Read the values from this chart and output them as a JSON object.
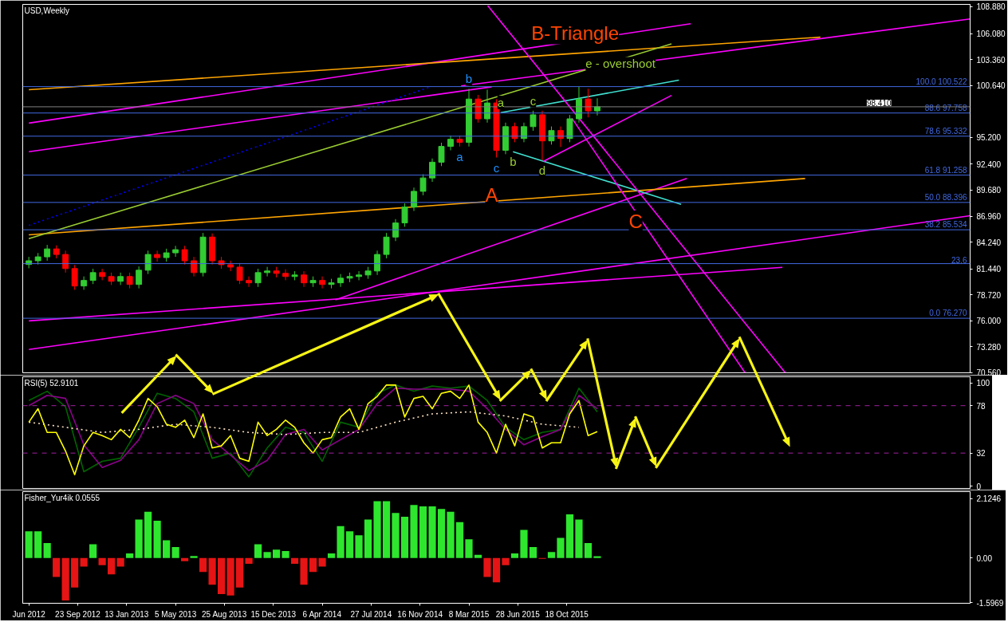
{
  "chart_data": [
    {
      "type": "candlestick",
      "title": "USD,Weekly",
      "tick_labels": "y",
      "x": [
        "2012-06-03",
        "2012-06-24",
        "2012-07-15",
        "2012-08-05",
        "2012-08-26",
        "2012-09-16",
        "2012-10-07",
        "2012-10-28",
        "2012-11-18",
        "2012-12-09",
        "2012-12-30",
        "2013-01-20",
        "2013-02-10",
        "2013-03-03",
        "2013-03-24",
        "2013-04-14",
        "2013-05-05",
        "2013-05-26",
        "2013-06-16",
        "2013-07-07",
        "2013-07-28",
        "2013-08-18",
        "2013-09-08",
        "2013-09-29",
        "2013-10-20",
        "2013-11-10",
        "2013-12-01",
        "2013-12-22",
        "2014-01-12",
        "2014-02-02",
        "2014-02-23",
        "2014-03-16",
        "2014-04-06",
        "2014-04-27",
        "2014-05-18",
        "2014-06-08",
        "2014-06-29",
        "2014-07-20",
        "2014-08-10",
        "2014-08-31",
        "2014-09-21",
        "2014-10-12",
        "2014-11-02",
        "2014-11-23",
        "2014-12-14",
        "2015-01-04",
        "2015-01-25",
        "2015-02-15",
        "2015-03-08",
        "2015-03-29",
        "2015-04-19",
        "2015-05-10",
        "2015-05-31",
        "2015-06-21",
        "2015-07-12",
        "2015-08-02",
        "2015-08-23",
        "2015-09-13",
        "2015-10-04",
        "2015-10-25",
        "2015-11-15",
        "2015-12-06",
        "2015-12-27"
      ],
      "ohlc": [
        [
          81.9,
          82.7,
          81.5,
          82.29
        ],
        [
          82.29,
          83.1,
          81.9,
          82.7
        ],
        [
          82.7,
          83.95,
          82.3,
          83.53
        ],
        [
          83.53,
          83.9,
          82.55,
          82.95
        ],
        [
          82.95,
          83.35,
          81.05,
          81.47
        ],
        [
          81.47,
          81.85,
          79.25,
          79.65
        ],
        [
          79.65,
          80.65,
          79.25,
          80.23
        ],
        [
          80.23,
          81.45,
          79.85,
          81.05
        ],
        [
          81.05,
          81.45,
          80.25,
          80.64
        ],
        [
          80.64,
          81.05,
          79.75,
          80.14
        ],
        [
          80.14,
          81.05,
          79.75,
          80.64
        ],
        [
          80.64,
          81.05,
          79.4,
          79.81
        ],
        [
          79.81,
          81.7,
          79.4,
          81.3
        ],
        [
          81.3,
          83.35,
          80.9,
          82.95
        ],
        [
          82.95,
          83.35,
          82.2,
          82.62
        ],
        [
          82.62,
          83.55,
          82.2,
          83.12
        ],
        [
          83.12,
          83.85,
          82.7,
          83.45
        ],
        [
          83.45,
          83.85,
          81.9,
          82.29
        ],
        [
          82.29,
          82.7,
          80.65,
          81.05
        ],
        [
          81.05,
          85.2,
          80.65,
          84.77
        ],
        [
          84.77,
          85.15,
          81.9,
          82.29
        ],
        [
          82.29,
          82.7,
          81.45,
          81.88
        ],
        [
          81.88,
          82.3,
          81.2,
          81.63
        ],
        [
          81.63,
          82.05,
          79.85,
          80.23
        ],
        [
          80.23,
          80.65,
          79.55,
          79.98
        ],
        [
          79.98,
          81.45,
          79.55,
          81.05
        ],
        [
          81.05,
          81.65,
          80.65,
          81.22
        ],
        [
          81.22,
          81.65,
          80.55,
          80.97
        ],
        [
          80.97,
          81.4,
          80.25,
          80.64
        ],
        [
          80.64,
          81.2,
          80.25,
          80.8
        ],
        [
          80.8,
          81.2,
          79.55,
          79.98
        ],
        [
          79.98,
          80.65,
          79.55,
          80.23
        ],
        [
          80.23,
          80.65,
          79.4,
          79.81
        ],
        [
          79.81,
          80.4,
          79.4,
          79.98
        ],
        [
          79.98,
          80.9,
          79.55,
          80.47
        ],
        [
          80.47,
          81.05,
          80.05,
          80.64
        ],
        [
          80.64,
          81.2,
          80.25,
          80.8
        ],
        [
          80.8,
          81.65,
          80.4,
          81.22
        ],
        [
          81.22,
          83.35,
          80.8,
          82.95
        ],
        [
          82.95,
          85.2,
          82.55,
          84.77
        ],
        [
          84.77,
          86.65,
          84.35,
          86.25
        ],
        [
          86.25,
          88.3,
          85.85,
          87.91
        ],
        [
          87.91,
          89.95,
          87.5,
          89.56
        ],
        [
          89.56,
          91.35,
          89.15,
          90.96
        ],
        [
          90.96,
          93.0,
          90.55,
          92.61
        ],
        [
          92.61,
          94.65,
          92.2,
          94.26
        ],
        [
          94.26,
          95.4,
          93.85,
          95.01
        ],
        [
          95.01,
          95.4,
          94.25,
          94.68
        ],
        [
          94.68,
          100.3,
          94.25,
          99.22
        ],
        [
          99.22,
          99.65,
          96.75,
          97.15
        ],
        [
          97.15,
          100.2,
          96.75,
          98.81
        ],
        [
          98.81,
          99.2,
          93.1,
          93.85
        ],
        [
          93.85,
          96.75,
          93.45,
          96.33
        ],
        [
          96.33,
          96.75,
          94.7,
          95.09
        ],
        [
          95.09,
          96.75,
          94.7,
          96.33
        ],
        [
          96.33,
          98.0,
          95.9,
          97.57
        ],
        [
          97.57,
          98.0,
          92.8,
          94.84
        ],
        [
          94.84,
          96.35,
          94.45,
          95.92
        ],
        [
          95.92,
          96.35,
          94.2,
          95.09
        ],
        [
          95.09,
          97.55,
          94.7,
          97.15
        ],
        [
          97.15,
          100.5,
          96.75,
          99.22
        ],
        [
          99.22,
          100.3,
          97.3,
          97.98
        ],
        [
          97.98,
          99.3,
          97.5,
          98.41
        ]
      ],
      "colors": [
        "#32cd32",
        "#32cd32",
        "#32cd32",
        "#ff0000",
        "#ff0000",
        "#ff0000",
        "#32cd32",
        "#32cd32",
        "#ff0000",
        "#ff0000",
        "#32cd32",
        "#ff0000",
        "#32cd32",
        "#32cd32",
        "#ff0000",
        "#32cd32",
        "#32cd32",
        "#ff0000",
        "#ff0000",
        "#32cd32",
        "#ff0000",
        "#ff0000",
        "#ff0000",
        "#ff0000",
        "#ff0000",
        "#32cd32",
        "#32cd32",
        "#ff0000",
        "#ff0000",
        "#32cd32",
        "#ff0000",
        "#32cd32",
        "#ff0000",
        "#32cd32",
        "#32cd32",
        "#32cd32",
        "#32cd32",
        "#32cd32",
        "#32cd32",
        "#32cd32",
        "#32cd32",
        "#32cd32",
        "#32cd32",
        "#32cd32",
        "#32cd32",
        "#32cd32",
        "#32cd32",
        "#ff0000",
        "#32cd32",
        "#ff0000",
        "#32cd32",
        "#ff0000",
        "#32cd32",
        "#ff0000",
        "#32cd32",
        "#32cd32",
        "#ff0000",
        "#32cd32",
        "#ff0000",
        "#32cd32",
        "#32cd32",
        "#ff0000",
        "#32cd32"
      ],
      "xlim": [
        "2012-05-20",
        "2018-04-29"
      ],
      "ylim": [
        70.56,
        109.13
      ],
      "yticks": [
        {
          "value": 108.88,
          "label": "108.880"
        },
        {
          "value": 106.08,
          "label": "106.080"
        },
        {
          "value": 103.36,
          "label": "103.360"
        },
        {
          "value": 100.64,
          "label": "100.640"
        },
        {
          "value": 95.2,
          "label": "95.200"
        },
        {
          "value": 92.4,
          "label": "92.400"
        },
        {
          "value": 89.68,
          "label": "89.680"
        },
        {
          "value": 86.96,
          "label": "86.960"
        },
        {
          "value": 84.24,
          "label": "84.240"
        },
        {
          "value": 81.44,
          "label": "81.440"
        },
        {
          "value": 78.72,
          "label": "78.720"
        },
        {
          "value": 76.0,
          "label": "76.000"
        },
        {
          "value": 73.28,
          "label": "73.280"
        },
        {
          "value": 70.56,
          "label": "70.560"
        }
      ],
      "ref_lines": [
        {
          "axis": "y",
          "value": 100.522,
          "label": "100.0 100.522",
          "color": "#4169e1"
        },
        {
          "axis": "y",
          "value": 97.758,
          "label": "88.6 97.758",
          "color": "#4169e1"
        },
        {
          "axis": "y",
          "value": 95.332,
          "label": "78.6 95.332",
          "color": "#4169e1"
        },
        {
          "axis": "y",
          "value": 91.258,
          "label": "61.8 91.258",
          "color": "#4169e1"
        },
        {
          "axis": "y",
          "value": 88.396,
          "label": "50.0 88.396",
          "color": "#4169e1"
        },
        {
          "axis": "y",
          "value": 85.534,
          "label": "38.2 85.534",
          "color": "#4169e1"
        },
        {
          "axis": "y",
          "value": 81.99,
          "color": "#4169e1"
        },
        {
          "axis": "y",
          "value": 76.27,
          "label": "0.0 76.270",
          "color": "#4169e1"
        },
        {
          "axis": "y",
          "value": 98.41,
          "label": "98.410",
          "color": "#808080"
        }
      ],
      "annotations": [
        "B-Triangle",
        "e - overshoot",
        {
          "text": "b",
          "x": "2015-03-08",
          "y": 100.3
        },
        {
          "text": "a",
          "x": "2015-02-15",
          "y": 94.25
        },
        {
          "text": "c",
          "x": "2015-05-10",
          "y": 93.1
        },
        {
          "text": "a",
          "x": "2015-05-20",
          "y": 97.81
        },
        {
          "text": "b",
          "x": "2015-06-17",
          "y": 93.69
        },
        {
          "text": "c",
          "x": "2015-08-02",
          "y": 98.0
        },
        {
          "text": "d",
          "x": "2015-08-23",
          "y": 92.8
        },
        "A",
        "C",
        {
          "text": "23.6",
          "x": "2018-04-29",
          "y": 81.99
        }
      ],
      "series": [
        {
          "type": "line",
          "x": [
            "2012-06-03",
            "2017-02-23"
          ],
          "values": [
            76.0,
            81.6
          ],
          "color": "#ff00ff"
        },
        {
          "type": "line",
          "x": [
            "2012-06-03",
            "2018-04-29"
          ],
          "values": [
            73.0,
            87.0
          ],
          "color": "#ff00ff"
        },
        {
          "type": "line",
          "x": [
            "2014-05-06",
            "2016-07-19"
          ],
          "values": [
            78.2,
            90.9
          ],
          "color": "#ff00ff"
        },
        {
          "type": "line",
          "x": [
            "2012-06-03",
            "2015-04-29"
          ],
          "values": [
            93.7,
            100.5
          ],
          "color": "#ff00ff"
        },
        {
          "type": "line",
          "x": [
            "2012-06-03",
            "2016-07-28"
          ],
          "values": [
            96.7,
            107.1
          ],
          "color": "#ff00ff"
        },
        {
          "type": "line",
          "x": [
            "2015-02-18",
            "2018-04-29"
          ],
          "values": [
            100.6,
            107.6
          ],
          "color": "#ff00ff"
        },
        {
          "type": "line",
          "x": [
            "2012-06-03",
            "2017-05-21"
          ],
          "values": [
            100.2,
            105.7
          ],
          "color": "#ffa500"
        },
        {
          "type": "line",
          "x": [
            "2012-06-03",
            "2017-04-16"
          ],
          "values": [
            85.0,
            90.9
          ],
          "color": "#ffa500"
        },
        {
          "type": "line",
          "x": [
            "2012-06-03",
            "2016-06-14"
          ],
          "values": [
            84.6,
            105.0
          ],
          "color": "#9acd32"
        },
        {
          "type": "line",
          "x": [
            "2012-06-03",
            "2014-12-10"
          ],
          "values": [
            86.0,
            100.5
          ],
          "color": "#0000ff",
          "line_style": "dotted"
        },
        {
          "type": "line",
          "x": [
            "2015-05-20",
            "2016-07-01"
          ],
          "values": [
            97.8,
            101.2
          ],
          "color": "#40e0d0"
        },
        {
          "type": "line",
          "x": [
            "2015-06-17",
            "2016-07-06"
          ],
          "values": [
            93.7,
            88.2
          ],
          "color": "#40e0d0"
        },
        {
          "type": "line",
          "x": [
            "2015-04-20",
            "2017-03-01"
          ],
          "values": [
            109.0,
            70.6
          ],
          "color": "#ff00ff"
        },
        {
          "type": "line",
          "x": [
            "2015-10-30",
            "2016-11-29"
          ],
          "values": [
            97.2,
            70.6
          ],
          "color": "#ff00ff"
        },
        {
          "type": "line",
          "x": [
            "2015-08-26",
            "2016-06-14"
          ],
          "values": [
            92.7,
            99.6
          ],
          "color": "#ff00ff"
        }
      ]
    },
    {
      "type": "line",
      "title": "RSI(5) 52.9101",
      "tick_labels": "y",
      "xlim": [
        "2012-05-20",
        "2018-04-29"
      ],
      "ylim": [
        -2.3,
        106
      ],
      "yticks": [
        100,
        78,
        32,
        0
      ],
      "ref_lines": [
        {
          "axis": "y",
          "value": 78,
          "color": "#a020a0",
          "line_style": "dashed"
        },
        {
          "axis": "y",
          "value": 32,
          "color": "#a020a0",
          "line_style": "dashed"
        }
      ],
      "series": [
        {
          "color": "#006400",
          "x": [
            "2012-06-03",
            "2012-07-15",
            "2012-08-26",
            "2012-10-07",
            "2012-11-18",
            "2012-12-30",
            "2013-02-10",
            "2013-03-24",
            "2013-05-05",
            "2013-06-16",
            "2013-07-28",
            "2013-09-08",
            "2013-10-20",
            "2013-12-01",
            "2014-01-12",
            "2014-02-23",
            "2014-04-06",
            "2014-05-18",
            "2014-06-29",
            "2014-08-10",
            "2014-09-21",
            "2014-11-02",
            "2014-12-14",
            "2015-01-25",
            "2015-03-08",
            "2015-04-19",
            "2015-05-31",
            "2015-07-12",
            "2015-08-23",
            "2015-10-04",
            "2015-11-15",
            "2015-12-27"
          ],
          "values": [
            83,
            92,
            77,
            14,
            24,
            27,
            57,
            90,
            85,
            72,
            27,
            32,
            9,
            37,
            57,
            52,
            24,
            62,
            57,
            90,
            98,
            92,
            97,
            95,
            97,
            83,
            57,
            45,
            52,
            55,
            95,
            72
          ]
        },
        {
          "color": "#8b008b",
          "x": [
            "2012-06-03",
            "2012-07-15",
            "2012-08-26",
            "2012-10-07",
            "2012-11-18",
            "2012-12-30",
            "2013-02-10",
            "2013-03-24",
            "2013-05-05",
            "2013-06-16",
            "2013-07-28",
            "2013-09-08",
            "2013-10-20",
            "2013-12-01",
            "2014-01-12",
            "2014-02-23",
            "2014-04-06",
            "2014-05-18",
            "2014-06-29",
            "2014-08-10",
            "2014-09-21",
            "2014-11-02",
            "2014-12-14",
            "2015-01-25",
            "2015-03-08",
            "2015-04-19",
            "2015-05-31",
            "2015-07-12",
            "2015-08-23",
            "2015-10-04",
            "2015-11-15",
            "2015-12-27"
          ],
          "values": [
            78,
            88,
            85,
            40,
            18,
            25,
            45,
            80,
            88,
            80,
            45,
            30,
            15,
            25,
            50,
            55,
            35,
            45,
            55,
            80,
            95,
            94,
            94,
            94,
            92,
            75,
            55,
            40,
            48,
            55,
            88,
            75
          ]
        },
        {
          "color": "#ffe4c4",
          "line_style": "dotted",
          "x": [
            "2012-06-03",
            "2012-08-26",
            "2012-11-18",
            "2013-02-10",
            "2013-05-05",
            "2013-07-28",
            "2013-10-20",
            "2014-01-12",
            "2014-04-06",
            "2014-06-29",
            "2014-09-21",
            "2014-12-14",
            "2015-03-08",
            "2015-05-31",
            "2015-08-23",
            "2015-11-15"
          ],
          "values": [
            62,
            57,
            52,
            55,
            60,
            57,
            52,
            50,
            52,
            52,
            62,
            70,
            72,
            68,
            60,
            57
          ]
        },
        {
          "color": "#ffff00",
          "x": [
            "2012-06-03",
            "2012-06-24",
            "2012-07-15",
            "2012-08-05",
            "2012-08-26",
            "2012-09-16",
            "2012-10-07",
            "2012-10-28",
            "2012-11-18",
            "2012-12-09",
            "2012-12-30",
            "2013-01-20",
            "2013-02-10",
            "2013-03-03",
            "2013-03-24",
            "2013-04-14",
            "2013-05-05",
            "2013-05-26",
            "2013-06-16",
            "2013-07-07",
            "2013-07-28",
            "2013-08-18",
            "2013-09-08",
            "2013-09-29",
            "2013-10-20",
            "2013-11-10",
            "2013-12-01",
            "2013-12-22",
            "2014-01-12",
            "2014-02-02",
            "2014-02-23",
            "2014-03-16",
            "2014-04-06",
            "2014-04-27",
            "2014-05-18",
            "2014-06-08",
            "2014-06-29",
            "2014-07-20",
            "2014-08-10",
            "2014-08-31",
            "2014-09-21",
            "2014-10-12",
            "2014-11-02",
            "2014-11-23",
            "2014-12-14",
            "2015-01-04",
            "2015-01-25",
            "2015-02-15",
            "2015-03-08",
            "2015-03-29",
            "2015-04-19",
            "2015-05-10",
            "2015-05-31",
            "2015-06-21",
            "2015-07-12",
            "2015-08-02",
            "2015-08-23",
            "2015-09-13",
            "2015-10-04",
            "2015-10-25",
            "2015-11-15",
            "2015-12-06",
            "2015-12-27"
          ],
          "values": [
            62,
            75,
            52,
            52,
            34,
            11,
            39,
            52,
            49,
            45,
            55,
            47,
            64,
            85,
            77,
            60,
            57,
            64,
            47,
            70,
            37,
            39,
            49,
            27,
            24,
            62,
            49,
            55,
            64,
            57,
            42,
            32,
            45,
            47,
            67,
            75,
            55,
            80,
            87,
            98,
            98,
            67,
            85,
            87,
            75,
            90,
            92,
            85,
            98,
            62,
            52,
            32,
            60,
            39,
            70,
            67,
            37,
            42,
            42,
            70,
            83,
            49,
            52.9
          ]
        }
      ]
    },
    {
      "type": "bar",
      "title": "Fisher_Yur4ik 0.0555",
      "x": [
        "2012-06-03",
        "2012-06-24",
        "2012-07-15",
        "2012-08-05",
        "2012-08-26",
        "2012-09-16",
        "2012-10-07",
        "2012-10-28",
        "2012-11-18",
        "2012-12-09",
        "2012-12-30",
        "2013-01-20",
        "2013-02-10",
        "2013-03-03",
        "2013-03-24",
        "2013-04-14",
        "2013-05-05",
        "2013-05-26",
        "2013-06-16",
        "2013-07-07",
        "2013-07-28",
        "2013-08-18",
        "2013-09-08",
        "2013-09-29",
        "2013-10-20",
        "2013-11-10",
        "2013-12-01",
        "2013-12-22",
        "2014-01-12",
        "2014-02-02",
        "2014-02-23",
        "2014-03-16",
        "2014-04-06",
        "2014-04-27",
        "2014-05-18",
        "2014-06-08",
        "2014-06-29",
        "2014-07-20",
        "2014-08-10",
        "2014-08-31",
        "2014-09-21",
        "2014-10-12",
        "2014-11-02",
        "2014-11-23",
        "2014-12-14",
        "2015-01-04",
        "2015-01-25",
        "2015-02-15",
        "2015-03-08",
        "2015-03-29",
        "2015-04-19",
        "2015-05-10",
        "2015-05-31",
        "2015-06-21",
        "2015-07-12",
        "2015-08-02",
        "2015-08-23",
        "2015-09-13",
        "2015-10-04",
        "2015-10-25",
        "2015-11-15",
        "2015-12-06",
        "2015-12-27"
      ],
      "values": [
        0.95,
        0.95,
        0.53,
        -0.68,
        -1.52,
        -1.06,
        -0.31,
        0.49,
        -0.26,
        -0.59,
        -0.31,
        0.16,
        1.37,
        1.65,
        1.33,
        0.63,
        0.39,
        -0.12,
        0.07,
        -0.5,
        -0.96,
        -1.29,
        -1.34,
        -1.06,
        -0.21,
        0.49,
        0.21,
        0.3,
        0.25,
        -0.21,
        -0.96,
        -0.5,
        -0.31,
        0.16,
        1.14,
        0.95,
        0.81,
        1.37,
        2.03,
        2.03,
        1.61,
        1.47,
        1.89,
        1.84,
        1.84,
        1.75,
        1.65,
        1.28,
        0.67,
        0.11,
        -0.68,
        -0.87,
        -0.26,
        0.16,
        1.0,
        0.39,
        -0.03,
        0.21,
        0.72,
        1.56,
        1.37,
        0.53,
        0.06
      ],
      "colors": [
        "#2ee62e",
        "#2ee62e",
        "#2ee62e",
        "#e61414",
        "#e61414",
        "#e61414",
        "#e61414",
        "#2ee62e",
        "#e61414",
        "#e61414",
        "#e61414",
        "#2ee62e",
        "#2ee62e",
        "#2ee62e",
        "#2ee62e",
        "#2ee62e",
        "#2ee62e",
        "#e61414",
        "#2ee62e",
        "#e61414",
        "#e61414",
        "#e61414",
        "#e61414",
        "#e61414",
        "#e61414",
        "#2ee62e",
        "#2ee62e",
        "#2ee62e",
        "#2ee62e",
        "#e61414",
        "#e61414",
        "#e61414",
        "#e61414",
        "#2ee62e",
        "#2ee62e",
        "#2ee62e",
        "#2ee62e",
        "#2ee62e",
        "#2ee62e",
        "#2ee62e",
        "#2ee62e",
        "#2ee62e",
        "#2ee62e",
        "#2ee62e",
        "#2ee62e",
        "#2ee62e",
        "#2ee62e",
        "#2ee62e",
        "#2ee62e",
        "#2ee62e",
        "#e61414",
        "#e61414",
        "#e61414",
        "#2ee62e",
        "#2ee62e",
        "#2ee62e",
        "#e61414",
        "#2ee62e",
        "#2ee62e",
        "#2ee62e",
        "#2ee62e",
        "#2ee62e",
        "#2ee62e"
      ],
      "xlim": [
        "2012-05-20",
        "2018-04-29"
      ],
      "ylim": [
        -1.62,
        2.37
      ],
      "yticks": [
        {
          "value": 2.1246,
          "label": "2.1246"
        },
        {
          "value": 0,
          "label": "0.00"
        },
        {
          "value": -1.5969,
          "label": "-1.5969"
        }
      ],
      "xticks": [
        {
          "value": "2012-06-03",
          "label": "Jun 2012"
        },
        {
          "value": "2012-09-23",
          "label": "23 Sep 2012"
        },
        {
          "value": "2013-01-13",
          "label": "13 Jan 2013"
        },
        {
          "value": "2013-05-05",
          "label": "5 May 2013"
        },
        {
          "value": "2013-08-25",
          "label": "25 Aug 2013"
        },
        {
          "value": "2013-12-15",
          "label": "15 Dec 2013"
        },
        {
          "value": "2014-04-06",
          "label": "6 Apr 2014"
        },
        {
          "value": "2014-07-27",
          "label": "27 Jul 2014"
        },
        {
          "value": "2014-11-16",
          "label": "16 Nov 2014"
        },
        {
          "value": "2015-03-08",
          "label": "8 Mar 2015"
        },
        {
          "value": "2015-06-28",
          "label": "28 Jun 2015"
        },
        {
          "value": "2015-10-18",
          "label": "18 Oct 2015"
        }
      ]
    }
  ]
}
